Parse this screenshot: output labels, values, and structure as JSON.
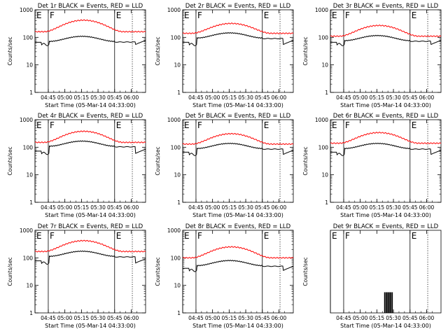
{
  "figure": {
    "xlabel": "Start Time (05-Mar-14 04:33:00)",
    "ylabel": "Counts/sec"
  },
  "chart_data": [
    {
      "type": "line",
      "title": "Det 1r BLACK = Events, RED = LLD",
      "profile": "standard",
      "x_range_min": [
        0,
        100
      ],
      "ylim": [
        1,
        1000
      ],
      "yscale": "log",
      "xticks": [
        {
          "label": "04:45",
          "min": 12
        },
        {
          "label": "05:00",
          "min": 27
        },
        {
          "label": "05:15",
          "min": 42
        },
        {
          "label": "05:30",
          "min": 57
        },
        {
          "label": "05:45",
          "min": 72
        },
        {
          "label": "06:00",
          "min": 87
        }
      ],
      "yticks": [
        {
          "label": "1",
          "value": 1
        },
        {
          "label": "10",
          "value": 10
        },
        {
          "label": "100",
          "value": 100
        },
        {
          "label": "1000",
          "value": 1000
        }
      ],
      "markers": [
        {
          "label": "E",
          "min": 0,
          "style": "solid"
        },
        {
          "label": "F",
          "min": 12,
          "style": "solid"
        },
        {
          "label": "E",
          "min": 72,
          "style": "solid"
        },
        {
          "label": "",
          "min": 88,
          "style": "dotted"
        }
      ],
      "red_base": 160,
      "red_peak": 420,
      "black_in": 75,
      "black_out": 55
    },
    {
      "type": "line",
      "title": "Det 2r BLACK = Events, RED = LLD",
      "profile": "standard",
      "x_range_min": [
        0,
        100
      ],
      "ylim": [
        1,
        1000
      ],
      "yscale": "log",
      "xticks": [
        {
          "label": "04:45",
          "min": 12
        },
        {
          "label": "05:00",
          "min": 27
        },
        {
          "label": "05:15",
          "min": 42
        },
        {
          "label": "05:30",
          "min": 57
        },
        {
          "label": "05:45",
          "min": 72
        },
        {
          "label": "06:00",
          "min": 87
        }
      ],
      "yticks": [
        {
          "label": "1",
          "value": 1
        },
        {
          "label": "10",
          "value": 10
        },
        {
          "label": "100",
          "value": 100
        },
        {
          "label": "1000",
          "value": 1000
        }
      ],
      "markers": [
        {
          "label": "E",
          "min": 0,
          "style": "solid"
        },
        {
          "label": "F",
          "min": 12,
          "style": "solid"
        },
        {
          "label": "E",
          "min": 72,
          "style": "solid"
        },
        {
          "label": "",
          "min": 88,
          "style": "dotted"
        }
      ],
      "red_base": 140,
      "red_peak": 320,
      "black_in": 100,
      "black_out": 55
    },
    {
      "type": "line",
      "title": "Det 3r BLACK = Events, RED = LLD",
      "profile": "standard",
      "x_range_min": [
        0,
        100
      ],
      "ylim": [
        1,
        1000
      ],
      "yscale": "log",
      "xticks": [
        {
          "label": "04:45",
          "min": 12
        },
        {
          "label": "05:00",
          "min": 27
        },
        {
          "label": "05:15",
          "min": 42
        },
        {
          "label": "05:30",
          "min": 57
        },
        {
          "label": "05:45",
          "min": 72
        },
        {
          "label": "06:00",
          "min": 87
        }
      ],
      "yticks": [
        {
          "label": "1",
          "value": 1
        },
        {
          "label": "10",
          "value": 10
        },
        {
          "label": "100",
          "value": 100
        },
        {
          "label": "1000",
          "value": 1000
        }
      ],
      "markers": [
        {
          "label": "E",
          "min": 0,
          "style": "solid"
        },
        {
          "label": "F",
          "min": 12,
          "style": "solid"
        },
        {
          "label": "E",
          "min": 72,
          "style": "solid"
        },
        {
          "label": "",
          "min": 88,
          "style": "dotted"
        }
      ],
      "red_base": 110,
      "red_peak": 270,
      "black_in": 80,
      "black_out": 55
    },
    {
      "type": "line",
      "title": "Det 4r BLACK = Events, RED = LLD",
      "profile": "standard",
      "x_range_min": [
        0,
        100
      ],
      "ylim": [
        1,
        1000
      ],
      "yscale": "log",
      "xticks": [
        {
          "label": "04:45",
          "min": 12
        },
        {
          "label": "05:00",
          "min": 27
        },
        {
          "label": "05:15",
          "min": 42
        },
        {
          "label": "05:30",
          "min": 57
        },
        {
          "label": "05:45",
          "min": 72
        },
        {
          "label": "06:00",
          "min": 87
        }
      ],
      "yticks": [
        {
          "label": "1",
          "value": 1
        },
        {
          "label": "10",
          "value": 10
        },
        {
          "label": "100",
          "value": 100
        },
        {
          "label": "1000",
          "value": 1000
        }
      ],
      "markers": [
        {
          "label": "E",
          "min": 0,
          "style": "solid"
        },
        {
          "label": "F",
          "min": 12,
          "style": "solid"
        },
        {
          "label": "E",
          "min": 72,
          "style": "solid"
        },
        {
          "label": "",
          "min": 88,
          "style": "dotted"
        }
      ],
      "red_base": 150,
      "red_peak": 380,
      "black_in": 115,
      "black_out": 60
    },
    {
      "type": "line",
      "title": "Det 5r BLACK = Events, RED = LLD",
      "profile": "standard",
      "x_range_min": [
        0,
        100
      ],
      "ylim": [
        1,
        1000
      ],
      "yscale": "log",
      "xticks": [
        {
          "label": "04:45",
          "min": 12
        },
        {
          "label": "05:00",
          "min": 27
        },
        {
          "label": "05:15",
          "min": 42
        },
        {
          "label": "05:30",
          "min": 57
        },
        {
          "label": "05:45",
          "min": 72
        },
        {
          "label": "06:00",
          "min": 87
        }
      ],
      "yticks": [
        {
          "label": "1",
          "value": 1
        },
        {
          "label": "10",
          "value": 10
        },
        {
          "label": "100",
          "value": 100
        },
        {
          "label": "1000",
          "value": 1000
        }
      ],
      "markers": [
        {
          "label": "E",
          "min": 0,
          "style": "solid"
        },
        {
          "label": "F",
          "min": 12,
          "style": "solid"
        },
        {
          "label": "E",
          "min": 72,
          "style": "solid"
        },
        {
          "label": "",
          "min": 88,
          "style": "dotted"
        }
      ],
      "red_base": 130,
      "red_peak": 310,
      "black_in": 95,
      "black_out": 55
    },
    {
      "type": "line",
      "title": "Det 6r BLACK = Events, RED = LLD",
      "profile": "standard",
      "x_range_min": [
        0,
        100
      ],
      "ylim": [
        1,
        1000
      ],
      "yscale": "log",
      "xticks": [
        {
          "label": "04:45",
          "min": 12
        },
        {
          "label": "05:00",
          "min": 27
        },
        {
          "label": "05:15",
          "min": 42
        },
        {
          "label": "05:30",
          "min": 57
        },
        {
          "label": "05:45",
          "min": 72
        },
        {
          "label": "06:00",
          "min": 87
        }
      ],
      "yticks": [
        {
          "label": "1",
          "value": 1
        },
        {
          "label": "10",
          "value": 10
        },
        {
          "label": "100",
          "value": 100
        },
        {
          "label": "1000",
          "value": 1000
        }
      ],
      "markers": [
        {
          "label": "E",
          "min": 0,
          "style": "solid"
        },
        {
          "label": "F",
          "min": 12,
          "style": "solid"
        },
        {
          "label": "E",
          "min": 72,
          "style": "solid"
        },
        {
          "label": "",
          "min": 88,
          "style": "dotted"
        }
      ],
      "red_base": 140,
      "red_peak": 340,
      "black_in": 95,
      "black_out": 55
    },
    {
      "type": "line",
      "title": "Det 7r BLACK = Events, RED = LLD",
      "profile": "standard",
      "x_range_min": [
        0,
        100
      ],
      "ylim": [
        1,
        1000
      ],
      "yscale": "log",
      "xticks": [
        {
          "label": "04:45",
          "min": 12
        },
        {
          "label": "05:00",
          "min": 27
        },
        {
          "label": "05:15",
          "min": 42
        },
        {
          "label": "05:30",
          "min": 57
        },
        {
          "label": "05:45",
          "min": 72
        },
        {
          "label": "06:00",
          "min": 87
        }
      ],
      "yticks": [
        {
          "label": "1",
          "value": 1
        },
        {
          "label": "10",
          "value": 10
        },
        {
          "label": "100",
          "value": 100
        },
        {
          "label": "1000",
          "value": 1000
        }
      ],
      "markers": [
        {
          "label": "E",
          "min": 0,
          "style": "solid"
        },
        {
          "label": "F",
          "min": 12,
          "style": "solid"
        },
        {
          "label": "E",
          "min": 72,
          "style": "solid"
        },
        {
          "label": "",
          "min": 88,
          "style": "dotted"
        }
      ],
      "red_base": 170,
      "red_peak": 420,
      "black_in": 120,
      "black_out": 65
    },
    {
      "type": "line",
      "title": "Det 8r BLACK = Events, RED = LLD",
      "profile": "standard",
      "x_range_min": [
        0,
        100
      ],
      "ylim": [
        1,
        1000
      ],
      "yscale": "log",
      "xticks": [
        {
          "label": "04:45",
          "min": 12
        },
        {
          "label": "05:00",
          "min": 27
        },
        {
          "label": "05:15",
          "min": 42
        },
        {
          "label": "05:30",
          "min": 57
        },
        {
          "label": "05:45",
          "min": 72
        },
        {
          "label": "06:00",
          "min": 87
        }
      ],
      "yticks": [
        {
          "label": "1",
          "value": 1
        },
        {
          "label": "10",
          "value": 10
        },
        {
          "label": "100",
          "value": 100
        },
        {
          "label": "1000",
          "value": 1000
        }
      ],
      "markers": [
        {
          "label": "E",
          "min": 0,
          "style": "solid"
        },
        {
          "label": "F",
          "min": 12,
          "style": "solid"
        },
        {
          "label": "E",
          "min": 72,
          "style": "solid"
        },
        {
          "label": "",
          "min": 88,
          "style": "dotted"
        }
      ],
      "red_base": 100,
      "red_peak": 250,
      "black_in": 55,
      "black_out": 35
    },
    {
      "type": "line",
      "title": "Det 9r BLACK = Events, RED = LLD",
      "profile": "sparse",
      "x_range_min": [
        0,
        100
      ],
      "ylim": [
        1,
        5
      ],
      "yscale": "linear",
      "xticks": [
        {
          "label": "04:45",
          "min": 12
        },
        {
          "label": "05:00",
          "min": 27
        },
        {
          "label": "05:15",
          "min": 42
        },
        {
          "label": "05:30",
          "min": 57
        },
        {
          "label": "05:45",
          "min": 72
        },
        {
          "label": "06:00",
          "min": 87
        }
      ],
      "yticks": [],
      "markers": [
        {
          "label": "E",
          "min": 0,
          "style": "solid"
        },
        {
          "label": "F",
          "min": 12,
          "style": "solid"
        },
        {
          "label": "E",
          "min": 72,
          "style": "solid"
        },
        {
          "label": "",
          "min": 88,
          "style": "dotted"
        }
      ],
      "spikes_min": [
        49,
        50,
        51,
        52,
        53,
        54,
        55,
        56
      ],
      "spike_value": 2
    }
  ]
}
